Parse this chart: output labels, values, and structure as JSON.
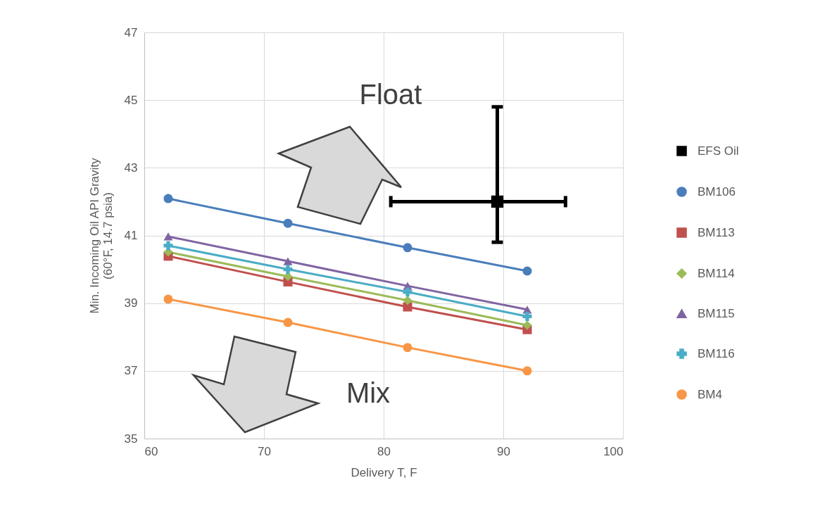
{
  "chart_data": {
    "type": "line",
    "xlabel": "Delivery T, F",
    "ylabel": "Min. Incoming Oil API Gravity\n(60°F, 14.7 psia)",
    "xlim": [
      60,
      100
    ],
    "xticks": [
      60,
      70,
      80,
      90,
      100
    ],
    "ylim": [
      35,
      47
    ],
    "yticks": [
      35,
      37,
      39,
      41,
      43,
      45,
      47
    ],
    "grid": true,
    "legend": "right",
    "annotations": [
      "Float",
      "Mix"
    ],
    "series": [
      {
        "name": "EFS Oil",
        "type": "scatter",
        "color": "#000000",
        "marker": "square",
        "x": [
          89.5
        ],
        "values": [
          42.0
        ],
        "errors": [
          [
            40.8,
            44.8
          ]
        ],
        "xerrors": [
          [
            80.6,
            95.2
          ]
        ]
      },
      {
        "name": "BM106",
        "type": "line",
        "color": "#4a7ebb",
        "marker": "circle",
        "x": [
          62,
          72,
          82,
          92
        ],
        "values": [
          42.09,
          41.36,
          40.64,
          39.95
        ]
      },
      {
        "name": "BM113",
        "type": "line",
        "color": "#c0504d",
        "marker": "square",
        "x": [
          62,
          72,
          82,
          92
        ],
        "values": [
          40.39,
          39.63,
          38.89,
          38.22
        ]
      },
      {
        "name": "BM114",
        "type": "line",
        "color": "#9bbb59",
        "marker": "diamond",
        "x": [
          62,
          72,
          82,
          92
        ],
        "values": [
          40.51,
          39.79,
          39.08,
          38.35
        ]
      },
      {
        "name": "BM115",
        "type": "line",
        "color": "#8064a2",
        "marker": "triangle",
        "x": [
          62,
          72,
          82,
          92
        ],
        "values": [
          40.97,
          40.24,
          39.51,
          38.81
        ]
      },
      {
        "name": "BM116",
        "type": "line",
        "color": "#4bacc6",
        "marker": "cross",
        "x": [
          62,
          72,
          82,
          92
        ],
        "values": [
          40.7,
          40.0,
          39.33,
          38.61
        ]
      },
      {
        "name": "BM4",
        "type": "line",
        "color": "#f79646",
        "marker": "circle",
        "x": [
          62,
          72,
          82,
          92
        ],
        "values": [
          39.12,
          38.43,
          37.69,
          37.0
        ]
      }
    ]
  }
}
